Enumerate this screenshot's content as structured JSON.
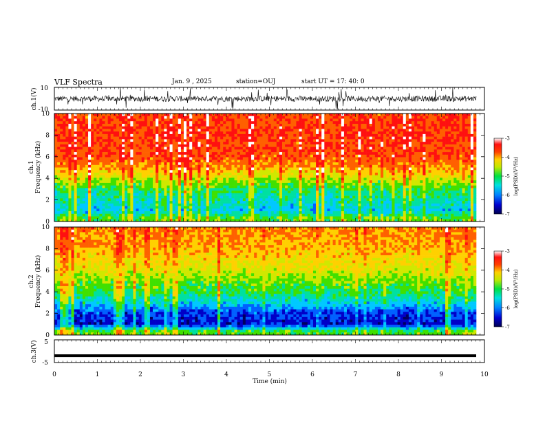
{
  "header": {
    "title": "VLF Spectra",
    "date": "Jan. 9 , 2025",
    "station": "station=OUJ",
    "start": "start UT = 17: 40: 0"
  },
  "colors": {
    "spectrum_scale": [
      "#000060",
      "#0000c8",
      "#0060ff",
      "#00c8ff",
      "#00e0a0",
      "#40e000",
      "#d0e800",
      "#ffd000",
      "#ff6000",
      "#ff1010",
      "#ffffff"
    ],
    "waveform": "#000000"
  },
  "chart_data": [
    {
      "type": "line",
      "panel": "ch1-waveform",
      "ylabel": "ch.1(V)",
      "ylim": [
        -10,
        10
      ],
      "yticks": [
        "10",
        "-10"
      ],
      "xlim": [
        0,
        10
      ],
      "description_values": "noisy waveform centered near 0 V, amplitude about ±3 V with spikes to ±10 V"
    },
    {
      "type": "heatmap",
      "panel": "ch1-spectrogram",
      "ylabel_top": "ch.1",
      "ylabel": "Frequency (kHz)",
      "ylim": [
        0,
        10
      ],
      "yticks": [
        "0",
        "2",
        "4",
        "6",
        "8",
        "10"
      ],
      "xlim": [
        0,
        10
      ],
      "colorbar": {
        "label": "log(PSD)(V²/Hz)",
        "range": [
          -7,
          -3
        ],
        "ticks": [
          "-3",
          "-4",
          "-5",
          "-6",
          "-7"
        ]
      },
      "level_profile": [
        {
          "freq_khz": 0.3,
          "log_psd": -5.0
        },
        {
          "freq_khz": 1.0,
          "log_psd": -5.8
        },
        {
          "freq_khz": 2.0,
          "log_psd": -5.5
        },
        {
          "freq_khz": 3.0,
          "log_psd": -5.2
        },
        {
          "freq_khz": 4.0,
          "log_psd": -4.6
        },
        {
          "freq_khz": 5.0,
          "log_psd": -4.0
        },
        {
          "freq_khz": 6.0,
          "log_psd": -3.7
        },
        {
          "freq_khz": 8.0,
          "log_psd": -3.6
        },
        {
          "freq_khz": 10.0,
          "log_psd": -3.7
        }
      ]
    },
    {
      "type": "heatmap",
      "panel": "ch2-spectrogram",
      "ylabel_top": "ch.2",
      "ylabel": "Frequency (kHz)",
      "ylim": [
        0,
        10
      ],
      "yticks": [
        "0",
        "2",
        "4",
        "6",
        "8",
        "10"
      ],
      "xlim": [
        0,
        10
      ],
      "colorbar": {
        "label": "log(PSD)(V²/Hz)",
        "range": [
          -7,
          -3
        ],
        "ticks": [
          "-3",
          "-4",
          "-5",
          "-6",
          "-7"
        ]
      },
      "level_profile": [
        {
          "freq_khz": 0.3,
          "log_psd": -5.0
        },
        {
          "freq_khz": 1.0,
          "log_psd": -6.6
        },
        {
          "freq_khz": 2.0,
          "log_psd": -6.4
        },
        {
          "freq_khz": 3.0,
          "log_psd": -5.7
        },
        {
          "freq_khz": 4.0,
          "log_psd": -5.2
        },
        {
          "freq_khz": 5.0,
          "log_psd": -4.9
        },
        {
          "freq_khz": 6.0,
          "log_psd": -4.5
        },
        {
          "freq_khz": 8.0,
          "log_psd": -4.1
        },
        {
          "freq_khz": 10.0,
          "log_psd": -3.9
        }
      ]
    },
    {
      "type": "line",
      "panel": "ch3-waveform",
      "ylabel": "ch.3(V)",
      "ylim": [
        -5,
        5
      ],
      "yticks": [
        "5",
        "-5"
      ],
      "xlim": [
        0,
        10
      ],
      "values_flat": -2
    }
  ],
  "xaxis": {
    "label": "Time (min)",
    "ticks": [
      "0",
      "1",
      "2",
      "3",
      "4",
      "5",
      "6",
      "7",
      "8",
      "9",
      "10"
    ]
  }
}
